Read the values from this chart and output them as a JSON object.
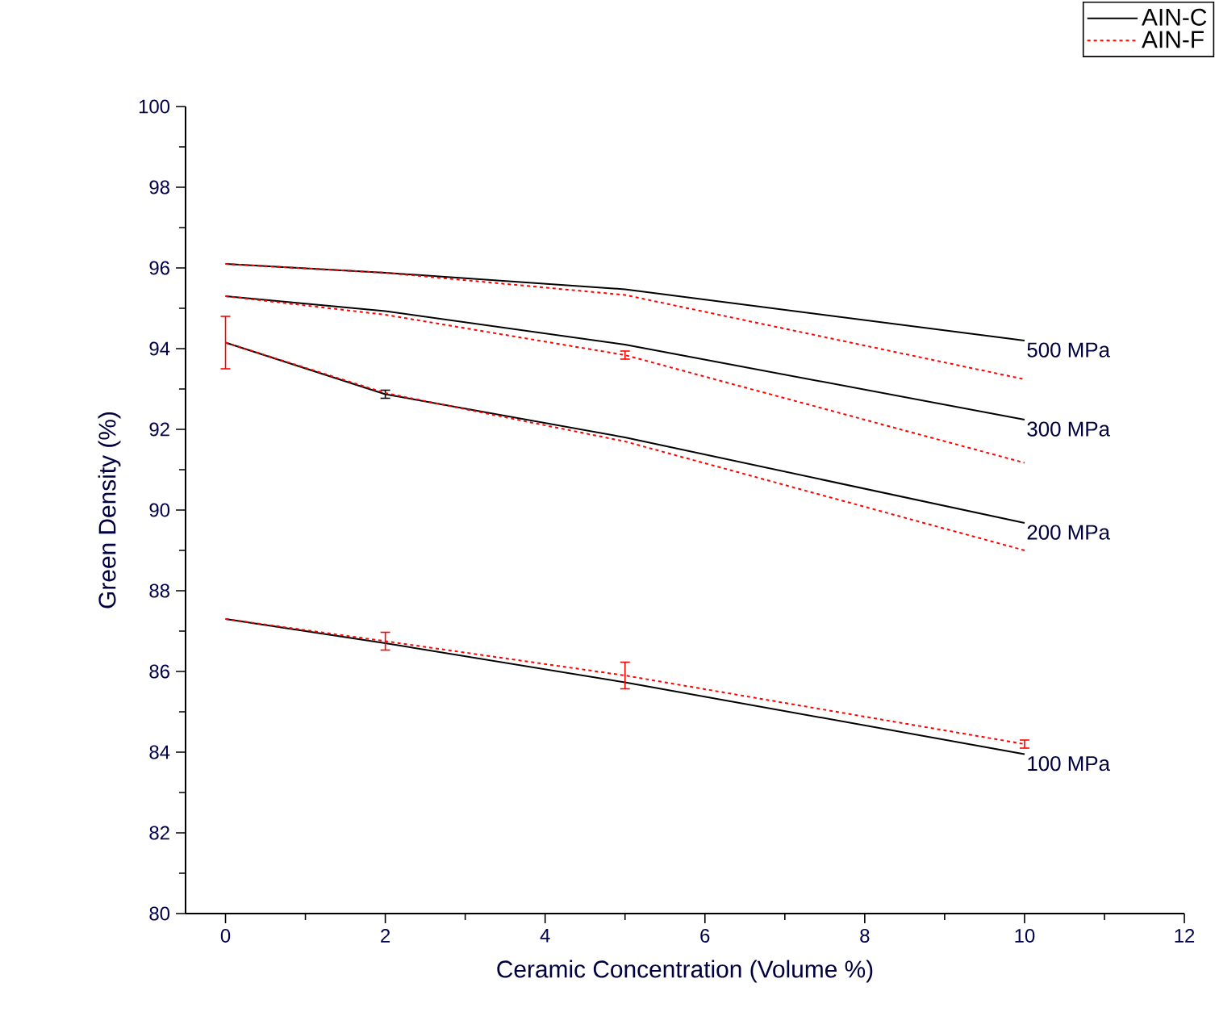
{
  "chart_data": {
    "type": "line",
    "xlabel": "Ceramic Concentration (Volume %)",
    "ylabel": "Green Density (%)",
    "x": [
      0,
      2,
      5,
      10
    ],
    "xlim": [
      -0.5,
      12
    ],
    "xticks": [
      0,
      2,
      4,
      6,
      8,
      10,
      12
    ],
    "ylim": [
      80,
      100
    ],
    "yticks": [
      80,
      82,
      84,
      86,
      88,
      90,
      92,
      94,
      96,
      98,
      100
    ],
    "grid": false,
    "legend": "top right",
    "marker": "none",
    "series": [
      {
        "name": "AIN-C",
        "color": "#000000",
        "line_style": "solid",
        "values": [
          96.1,
          95.88,
          95.47,
          94.2
        ]
      },
      {
        "name": "AIN-F",
        "color": "#ff0000",
        "line_style": "dotted",
        "values": [
          96.1,
          95.88,
          95.33,
          93.24
        ]
      },
      {
        "color": "#000000",
        "line_style": "solid",
        "values": [
          95.3,
          94.93,
          94.1,
          92.24
        ]
      },
      {
        "color": "#ff0000",
        "line_style": "dotted",
        "values": [
          95.3,
          94.84,
          93.84,
          91.17
        ],
        "errors": [
          null,
          null,
          0.1,
          null
        ]
      },
      {
        "color": "#000000",
        "line_style": "solid",
        "values": [
          94.15,
          92.87,
          91.8,
          89.68
        ],
        "errors": [
          null,
          0.1,
          null,
          null
        ]
      },
      {
        "color": "#ff0000",
        "line_style": "dotted",
        "values": [
          94.15,
          92.9,
          91.7,
          89.0
        ],
        "errors": [
          0.65,
          null,
          null,
          null
        ]
      },
      {
        "color": "#000000",
        "line_style": "solid",
        "values": [
          87.3,
          86.7,
          85.73,
          83.95
        ]
      },
      {
        "color": "#ff0000",
        "line_style": "dotted",
        "values": [
          87.3,
          86.75,
          85.9,
          84.2
        ],
        "errors": [
          null,
          0.22,
          0.33,
          0.1
        ]
      }
    ],
    "annotations": [
      "500 MPa",
      "300 MPa",
      "200 MPa",
      "100 MPa"
    ]
  }
}
